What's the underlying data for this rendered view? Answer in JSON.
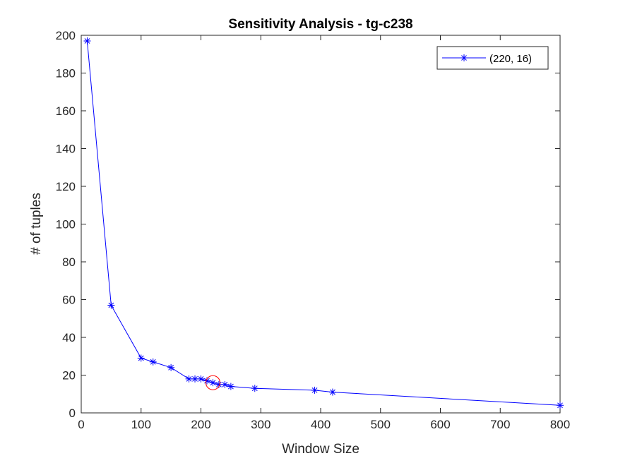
{
  "chart_data": {
    "type": "line",
    "title": "Sensitivity Analysis - tg-c238",
    "xlabel": "Window Size",
    "ylabel": "# of tuples",
    "xlim": [
      0,
      800
    ],
    "ylim": [
      0,
      200
    ],
    "xticks": [
      0,
      100,
      200,
      300,
      400,
      500,
      600,
      700,
      800
    ],
    "yticks": [
      0,
      20,
      40,
      60,
      80,
      100,
      120,
      140,
      160,
      180,
      200
    ],
    "grid": false,
    "legend_position": "top-right",
    "series": [
      {
        "name": "(220, 16)",
        "color": "#0000ff",
        "marker": "asterisk",
        "x": [
          10,
          50,
          100,
          120,
          150,
          180,
          190,
          200,
          210,
          220,
          230,
          240,
          250,
          290,
          390,
          420,
          800
        ],
        "y": [
          197,
          57,
          29,
          27,
          24,
          18,
          18,
          18,
          17,
          16,
          15,
          15,
          14,
          13,
          12,
          11,
          4
        ]
      }
    ],
    "highlight": {
      "x": 220,
      "y": 16,
      "shape": "circle",
      "color": "#ff0000"
    }
  }
}
